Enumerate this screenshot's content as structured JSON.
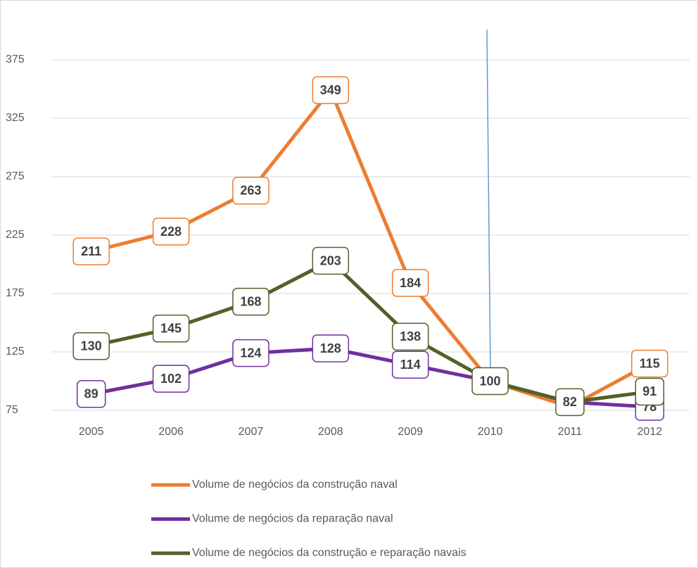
{
  "chart_data": {
    "type": "line",
    "categories": [
      "2005",
      "2006",
      "2007",
      "2008",
      "2009",
      "2010",
      "2011",
      "2012"
    ],
    "series": [
      {
        "name": "Volume de negócios da construção naval",
        "color": "#ed7d31",
        "values": [
          211,
          228,
          263,
          349,
          184,
          100,
          78,
          115
        ],
        "value_labels": [
          "211",
          "228",
          "263",
          "349",
          "184",
          null,
          null,
          "115"
        ]
      },
      {
        "name": "Volume de negócios da reparação naval",
        "color": "#7030a0",
        "values": [
          89,
          102,
          124,
          128,
          114,
          100,
          82,
          78
        ],
        "value_labels": [
          "89",
          "102",
          "124",
          "128",
          "114",
          null,
          null,
          "78"
        ]
      },
      {
        "name": "Volume de negócios da construção e reparação navais",
        "color": "#4f6228",
        "values": [
          130,
          145,
          168,
          203,
          138,
          100,
          82,
          91
        ],
        "value_labels": [
          "130",
          "145",
          "168",
          "203",
          "138",
          "100",
          "82",
          "91"
        ]
      }
    ],
    "ylim": [
      75,
      400
    ],
    "yticks": [
      75,
      125,
      175,
      225,
      275,
      325,
      375
    ],
    "grid": true
  }
}
